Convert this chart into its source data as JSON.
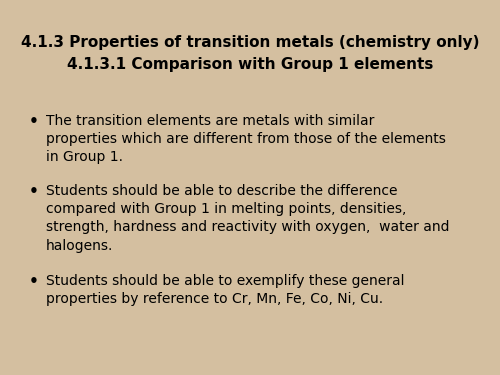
{
  "title_line1": "4.1.3 Properties of transition metals (chemistry only)",
  "title_line2": "4.1.3.1 Comparison with Group 1 elements",
  "title_bg": "#FFFF00",
  "title_color": "#000000",
  "content_bg": "#D0D0D0",
  "outer_bg": "#D4BFA0",
  "bullet_points": [
    "The transition elements are metals with similar\nproperties which are different from those of the elements\nin Group 1.",
    "Students should be able to describe the difference\ncompared with Group 1 in melting points, densities,\nstrength, hardness and reactivity with oxygen,  water and\nhalogens.",
    "Students should be able to exemplify these general\nproperties by reference to Cr, Mn, Fe, Co, Ni, Cu."
  ],
  "title_fontsize": 11.0,
  "bullet_fontsize": 10.0,
  "font_family": "DejaVu Sans"
}
